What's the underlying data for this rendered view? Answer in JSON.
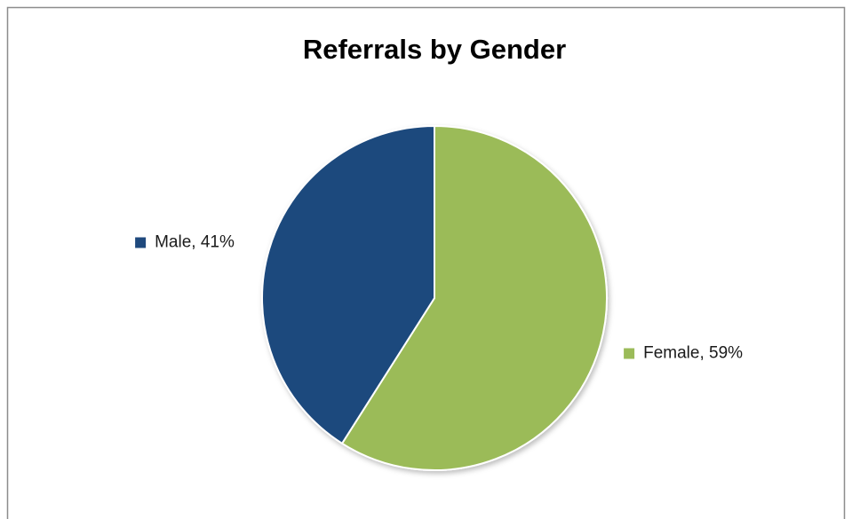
{
  "chart_data": {
    "type": "pie",
    "title": "Referrals by Gender",
    "values": [
      59,
      41
    ],
    "value_labels": [
      "Female, 59%",
      "Male, 41%"
    ],
    "colors": [
      "#9bbb59",
      "#1f497d"
    ]
  }
}
